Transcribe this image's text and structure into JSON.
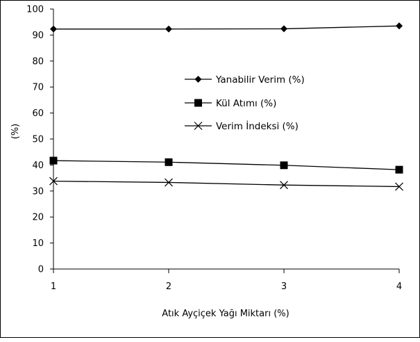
{
  "chart_data": {
    "type": "line",
    "xlabel": "Atık Ayçiçek Yağı Miktarı (%)",
    "ylabel": "(%)",
    "categories": [
      "1",
      "2",
      "3",
      "4"
    ],
    "x": [
      1,
      2,
      3,
      4
    ],
    "xlim": [
      1,
      4
    ],
    "ylim": [
      0,
      100
    ],
    "y_ticks": [
      "0",
      "10",
      "20",
      "30",
      "40",
      "50",
      "60",
      "70",
      "80",
      "90",
      "100"
    ],
    "grid": false,
    "legend_position": "center-right",
    "series": [
      {
        "name": "Yanabilir Verim (%)",
        "values": [
          92.3,
          92.3,
          92.4,
          93.5
        ],
        "marker": "diamond",
        "color": "#000000"
      },
      {
        "name": "Kül Atımı (%)",
        "values": [
          41.7,
          41.1,
          39.9,
          38.2
        ],
        "marker": "square",
        "color": "#000000"
      },
      {
        "name": "Verim İndeksi (%)",
        "values": [
          33.8,
          33.3,
          32.3,
          31.7
        ],
        "marker": "x",
        "color": "#000000"
      }
    ]
  }
}
